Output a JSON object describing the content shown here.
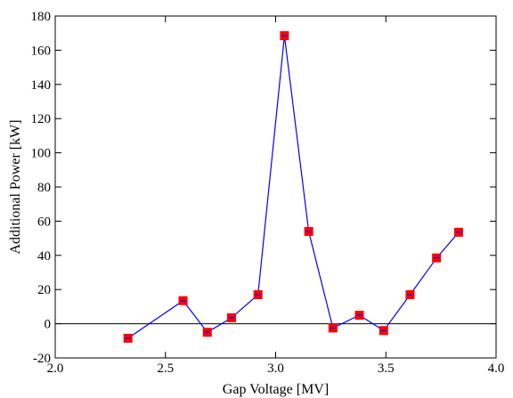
{
  "chart_data": {
    "type": "line",
    "title": "",
    "xlabel": "Gap Voltage [MV]",
    "ylabel": "Additional Power [kW]",
    "xlim": [
      2.0,
      4.0
    ],
    "ylim": [
      -20,
      180
    ],
    "xticks": [
      2.0,
      2.5,
      3.0,
      3.5,
      4.0
    ],
    "xtick_labels": [
      "2.0",
      "2.5",
      "3.0",
      "3.5",
      "4.0"
    ],
    "yticks": [
      -20,
      0,
      20,
      40,
      60,
      80,
      100,
      120,
      140,
      160,
      180
    ],
    "ytick_labels": [
      "-20",
      "0",
      "20",
      "40",
      "60",
      "80",
      "100",
      "120",
      "140",
      "160",
      "180"
    ],
    "zero_line": true,
    "grid": false,
    "series": [
      {
        "line_color": "#0000ff",
        "marker": "square",
        "marker_color": "#ff0000",
        "x": [
          2.33,
          2.58,
          2.69,
          2.8,
          2.92,
          3.04,
          3.15,
          3.26,
          3.38,
          3.49,
          3.61,
          3.73,
          3.83
        ],
        "y": [
          -8.5,
          13.5,
          -5,
          3.5,
          17,
          168.5,
          54,
          -2.5,
          5,
          -4,
          17,
          38.5,
          53.5
        ]
      }
    ]
  }
}
